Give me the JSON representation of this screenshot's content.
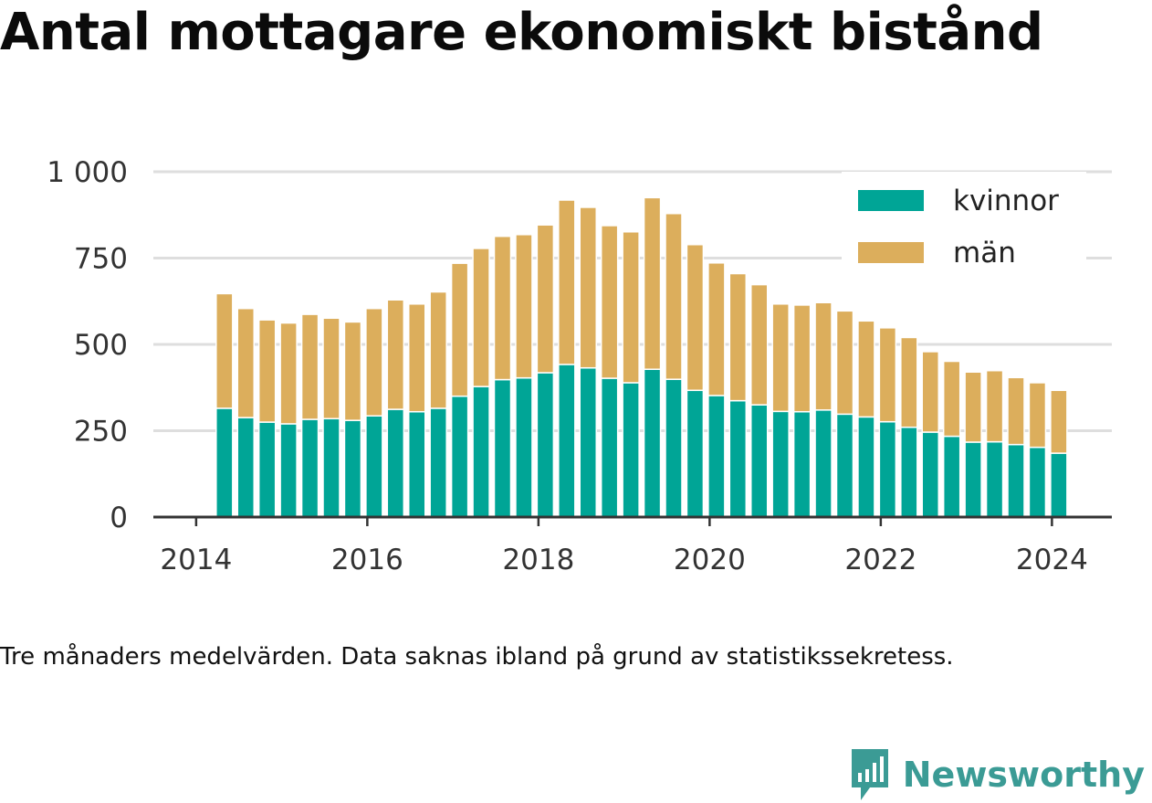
{
  "title": "Antal mottagare ekonomiskt bistånd",
  "note": "Tre månaders medelvärden. Data saknas ibland på grund av statistikssekretess.",
  "brand": {
    "name": "Newsworthy",
    "icon": "newsworthy-logo-icon",
    "color": "#3b9b95"
  },
  "chart_data": {
    "type": "bar",
    "stacked": true,
    "x_axis": {
      "type": "date",
      "ticks": [
        2014,
        2016,
        2018,
        2020,
        2022,
        2024
      ],
      "range": [
        2013.5,
        2024.7
      ]
    },
    "y_axis": {
      "range": [
        0,
        1000
      ],
      "ticks": [
        0,
        250,
        500,
        750,
        1000
      ],
      "tick_labels": [
        "0",
        "250",
        "500",
        "750",
        "1 000"
      ]
    },
    "grid": true,
    "legend_position": "top-right",
    "x": [
      2014.33,
      2014.58,
      2014.83,
      2015.08,
      2015.33,
      2015.58,
      2015.83,
      2016.08,
      2016.33,
      2016.58,
      2016.83,
      2017.08,
      2017.33,
      2017.58,
      2017.83,
      2018.08,
      2018.33,
      2018.58,
      2018.83,
      2019.08,
      2019.33,
      2019.58,
      2019.83,
      2020.08,
      2020.33,
      2020.58,
      2020.83,
      2021.08,
      2021.33,
      2021.58,
      2021.83,
      2022.08,
      2022.33,
      2022.58,
      2022.83,
      2023.08,
      2023.33,
      2023.58,
      2023.83,
      2024.08
    ],
    "series": [
      {
        "name": "kvinnor",
        "color": "#00a596",
        "values": [
          315,
          288,
          275,
          270,
          283,
          285,
          280,
          293,
          312,
          305,
          315,
          350,
          378,
          398,
          403,
          418,
          442,
          432,
          402,
          389,
          428,
          399,
          367,
          352,
          337,
          325,
          306,
          305,
          310,
          298,
          290,
          276,
          260,
          246,
          234,
          217,
          218,
          210,
          202,
          185
        ]
      },
      {
        "name": "män",
        "color": "#dcae5c",
        "values": [
          332,
          316,
          296,
          292,
          304,
          291,
          285,
          311,
          317,
          312,
          337,
          385,
          400,
          415,
          415,
          428,
          476,
          465,
          442,
          437,
          497,
          480,
          422,
          384,
          368,
          348,
          311,
          309,
          311,
          299,
          278,
          272,
          260,
          233,
          217,
          203,
          206,
          194,
          187,
          182
        ]
      }
    ]
  }
}
